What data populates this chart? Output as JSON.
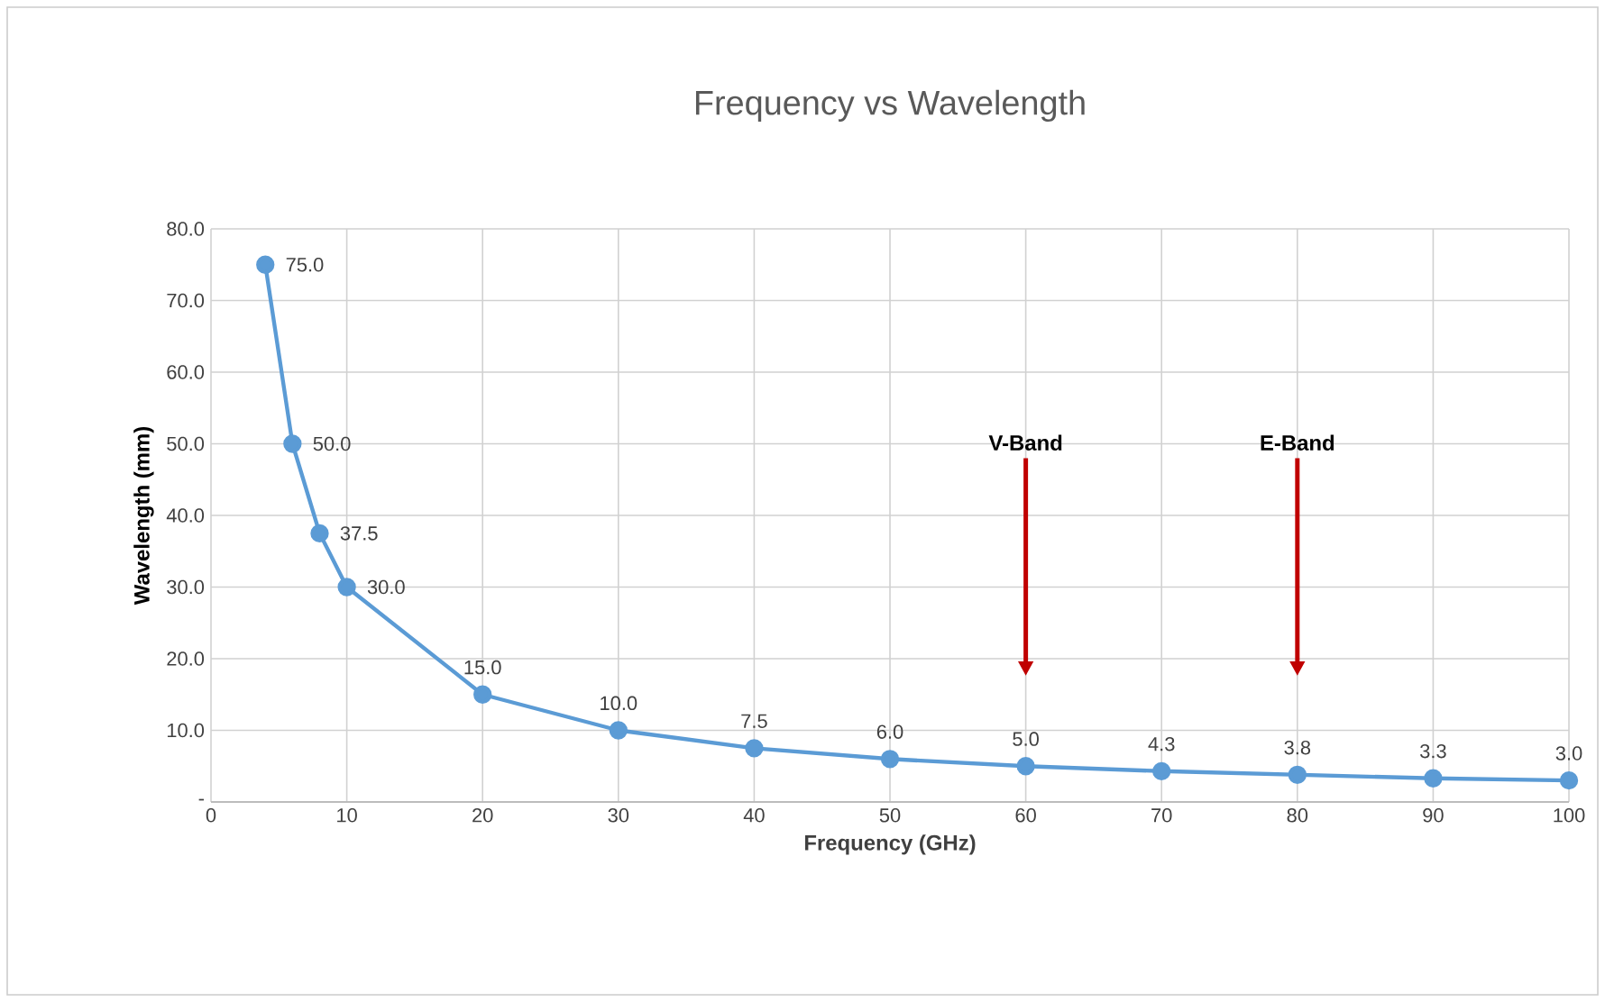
{
  "chart_data": {
    "type": "line",
    "title": "Frequency vs Wavelength",
    "xlabel": "Frequency (GHz)",
    "ylabel": "Wavelength (mm)",
    "x": [
      4,
      6,
      8,
      10,
      20,
      30,
      40,
      50,
      60,
      70,
      80,
      90,
      100
    ],
    "series": [
      {
        "color": "#5b9bd5",
        "values": [
          75.0,
          50.0,
          37.5,
          30.0,
          15.0,
          10.0,
          7.5,
          6.0,
          5.0,
          4.3,
          3.8,
          3.3,
          3.0
        ],
        "value_labels": [
          "75.0",
          "50.0",
          "37.5",
          "30.0",
          "15.0",
          "10.0",
          "7.5",
          "6.0",
          "5.0",
          "4.3",
          "3.8",
          "3.3",
          "3.0"
        ]
      }
    ],
    "xlim": [
      0,
      100
    ],
    "ylim": [
      0,
      80
    ],
    "xticks": [
      0,
      10,
      20,
      30,
      40,
      50,
      60,
      70,
      80,
      90,
      100
    ],
    "yticks": [
      {
        "value": 0,
        "label": "-"
      },
      {
        "value": 10,
        "label": "10.0"
      },
      {
        "value": 20,
        "label": "20.0"
      },
      {
        "value": 30,
        "label": "30.0"
      },
      {
        "value": 40,
        "label": "40.0"
      },
      {
        "value": 50,
        "label": "50.0"
      },
      {
        "value": 60,
        "label": "60.0"
      },
      {
        "value": 70,
        "label": "70.0"
      },
      {
        "value": 80,
        "label": "80.0"
      }
    ],
    "annotations": [
      "V-Band",
      "E-Band"
    ],
    "grid": true,
    "marker": "circle",
    "line_style": "solid",
    "legend": false
  }
}
